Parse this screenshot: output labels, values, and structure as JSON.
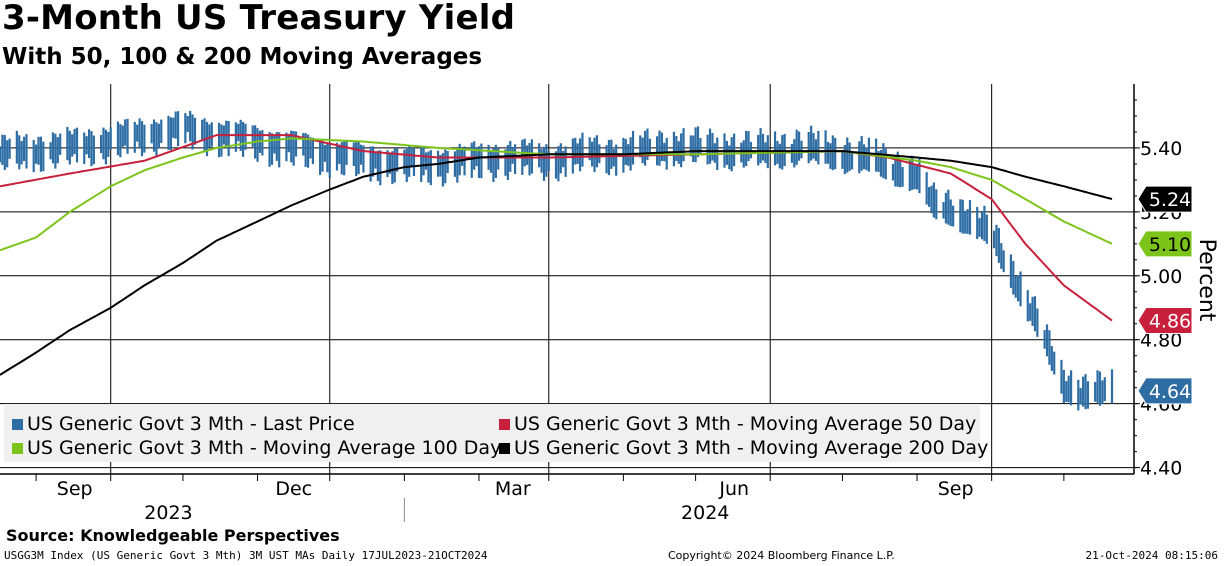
{
  "header": {
    "title": "3-Month US Treasury Yield",
    "subtitle": "With 50, 100 & 200 Moving Averages"
  },
  "footer": {
    "source": "Source: Knowledgeable Perspectives",
    "ticker": "USGG3M Index (US Generic Govt 3 Mth) 3M UST MAs  Daily 17JUL2023-21OCT2024",
    "copyright": "Copyright© 2024 Bloomberg Finance L.P.",
    "timestamp": "21-Oct-2024 08:15:06"
  },
  "colors": {
    "price": "#2e6da4",
    "ma50": "#c8203c",
    "ma100": "#7dc41a",
    "ma200": "#000000"
  },
  "chart_data": {
    "type": "line",
    "title": "3-Month US Treasury Yield",
    "subtitle": "With 50, 100 & 200 Moving Averages",
    "ylabel": "Percent",
    "ylim": [
      4.38,
      5.6
    ],
    "yticks": [
      "5.40",
      "5.20",
      "5.00",
      "4.80",
      "4.60",
      "4.40"
    ],
    "xlim": [
      "2023-07-17",
      "2024-10-21"
    ],
    "month_ticks": [
      {
        "label": "Sep",
        "date": "2023-09-01"
      },
      {
        "label": "Dec",
        "date": "2023-12-01"
      },
      {
        "label": "Mar",
        "date": "2024-03-01"
      },
      {
        "label": "Jun",
        "date": "2024-06-01"
      },
      {
        "label": "Sep",
        "date": "2024-09-01"
      }
    ],
    "year_labels": [
      {
        "label": "2023",
        "date": "2023-09-25"
      },
      {
        "label": "2024",
        "date": "2024-05-05"
      }
    ],
    "year_separator": "2024-01-01",
    "series": [
      {
        "name": "US Generic Govt 3 Mth - Last Price",
        "style": "bars",
        "last_value": "4.64",
        "dates": [
          "2023-07-17",
          "2023-08-01",
          "2023-08-15",
          "2023-09-01",
          "2023-09-15",
          "2023-10-01",
          "2023-10-15",
          "2023-11-01",
          "2023-11-15",
          "2023-12-01",
          "2023-12-15",
          "2024-01-01",
          "2024-01-15",
          "2024-02-01",
          "2024-02-15",
          "2024-03-01",
          "2024-03-15",
          "2024-04-01",
          "2024-04-15",
          "2024-05-01",
          "2024-05-15",
          "2024-06-01",
          "2024-06-15",
          "2024-07-01",
          "2024-07-15",
          "2024-08-01",
          "2024-08-08",
          "2024-08-15",
          "2024-09-01",
          "2024-09-10",
          "2024-09-20",
          "2024-10-01",
          "2024-10-10",
          "2024-10-21"
        ],
        "values": [
          5.38,
          5.39,
          5.4,
          5.42,
          5.44,
          5.46,
          5.44,
          5.42,
          5.4,
          5.38,
          5.36,
          5.35,
          5.35,
          5.36,
          5.37,
          5.36,
          5.38,
          5.38,
          5.4,
          5.4,
          5.39,
          5.39,
          5.4,
          5.38,
          5.36,
          5.31,
          5.22,
          5.21,
          5.13,
          5.0,
          4.85,
          4.66,
          4.63,
          4.64
        ]
      },
      {
        "name": "US Generic Govt 3 Mth - Moving Average 50 Day",
        "last_value": "4.86",
        "dates": [
          "2023-07-17",
          "2023-08-15",
          "2023-09-15",
          "2023-10-15",
          "2023-11-15",
          "2023-12-15",
          "2024-01-15",
          "2024-03-01",
          "2024-05-01",
          "2024-07-01",
          "2024-07-20",
          "2024-08-15",
          "2024-09-01",
          "2024-09-15",
          "2024-10-01",
          "2024-10-21"
        ],
        "values": [
          5.28,
          5.32,
          5.36,
          5.44,
          5.44,
          5.39,
          5.37,
          5.37,
          5.38,
          5.39,
          5.37,
          5.32,
          5.24,
          5.1,
          4.97,
          4.86
        ]
      },
      {
        "name": "US Generic Govt 3 Mth - Moving Average 100 Day",
        "last_value": "5.10",
        "dates": [
          "2023-07-17",
          "2023-08-01",
          "2023-08-15",
          "2023-09-01",
          "2023-09-15",
          "2023-10-01",
          "2023-10-15",
          "2023-11-01",
          "2023-11-15",
          "2023-12-15",
          "2024-01-15",
          "2024-03-01",
          "2024-05-01",
          "2024-07-01",
          "2024-08-01",
          "2024-08-15",
          "2024-09-01",
          "2024-09-15",
          "2024-10-01",
          "2024-10-21"
        ],
        "values": [
          5.08,
          5.12,
          5.2,
          5.28,
          5.33,
          5.37,
          5.4,
          5.42,
          5.43,
          5.42,
          5.4,
          5.38,
          5.38,
          5.39,
          5.36,
          5.34,
          5.3,
          5.24,
          5.17,
          5.1
        ]
      },
      {
        "name": "US Generic Govt 3 Mth - Moving Average 200 Day",
        "last_value": "5.24",
        "dates": [
          "2023-07-17",
          "2023-08-01",
          "2023-08-15",
          "2023-09-01",
          "2023-09-15",
          "2023-10-01",
          "2023-10-15",
          "2023-11-01",
          "2023-11-15",
          "2023-12-01",
          "2023-12-15",
          "2024-01-01",
          "2024-01-15",
          "2024-02-01",
          "2024-03-01",
          "2024-04-01",
          "2024-05-01",
          "2024-06-01",
          "2024-07-01",
          "2024-08-01",
          "2024-08-15",
          "2024-09-01",
          "2024-09-15",
          "2024-10-01",
          "2024-10-21"
        ],
        "values": [
          4.69,
          4.76,
          4.83,
          4.9,
          4.97,
          5.04,
          5.11,
          5.17,
          5.22,
          5.27,
          5.31,
          5.34,
          5.35,
          5.37,
          5.38,
          5.38,
          5.39,
          5.39,
          5.39,
          5.37,
          5.36,
          5.34,
          5.31,
          5.28,
          5.24
        ]
      }
    ],
    "legend": [
      {
        "label": "US Generic Govt 3 Mth - Last Price",
        "color_key": "price"
      },
      {
        "label": "US Generic Govt 3 Mth - Moving Average 50 Day",
        "color_key": "ma50"
      },
      {
        "label": "US Generic Govt 3 Mth - Moving Average 100 Day",
        "color_key": "ma100"
      },
      {
        "label": "US Generic Govt 3 Mth - Moving Average 200 Day",
        "color_key": "ma200"
      }
    ],
    "legend_position": "bottom-left"
  }
}
